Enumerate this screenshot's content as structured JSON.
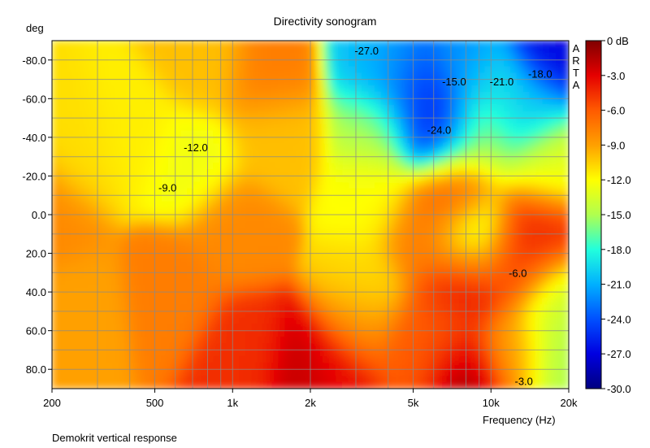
{
  "chart_data": {
    "type": "heatmap",
    "title": "Directivity sonogram",
    "ylabel": "deg",
    "xlabel": "Frequency (Hz)",
    "caption": "Demokrit vertical response",
    "watermark": "ARTA",
    "x_scale": "log",
    "xlim": [
      200,
      20000
    ],
    "ylim": [
      90,
      -90
    ],
    "x_ticks": [
      {
        "value": 200,
        "label": "200"
      },
      {
        "value": 500,
        "label": "500"
      },
      {
        "value": 1000,
        "label": "1k"
      },
      {
        "value": 2000,
        "label": "2k"
      },
      {
        "value": 5000,
        "label": "5k"
      },
      {
        "value": 10000,
        "label": "10k"
      },
      {
        "value": 20000,
        "label": "20k"
      }
    ],
    "y_ticks": [
      {
        "value": -80,
        "label": "-80.0"
      },
      {
        "value": -60,
        "label": "-60.0"
      },
      {
        "value": -40,
        "label": "-40.0"
      },
      {
        "value": -20,
        "label": "-20.0"
      },
      {
        "value": 0,
        "label": "0.0"
      },
      {
        "value": 20,
        "label": "20.0"
      },
      {
        "value": 40,
        "label": "40.0"
      },
      {
        "value": 60,
        "label": "60.0"
      },
      {
        "value": 80,
        "label": "80.0"
      }
    ],
    "colorbar": {
      "range": [
        -30,
        0
      ],
      "unit": "dB",
      "labels": [
        "0 dB",
        "-3.0",
        "-6.0",
        "-9.0",
        "-12.0",
        "-15.0",
        "-18.0",
        "-21.0",
        "-24.0",
        "-27.0",
        "-30.0"
      ]
    },
    "contour_labels": [
      {
        "text": "-27.0",
        "freq": 3300,
        "deg": -85
      },
      {
        "text": "-15.0",
        "freq": 7200,
        "deg": -69
      },
      {
        "text": "-21.0",
        "freq": 11000,
        "deg": -69
      },
      {
        "text": "-18.0",
        "freq": 15500,
        "deg": -73
      },
      {
        "text": "-24.0",
        "freq": 6300,
        "deg": -44
      },
      {
        "text": "-12.0",
        "freq": 720,
        "deg": -35
      },
      {
        "text": "-9.0",
        "freq": 560,
        "deg": -14
      },
      {
        "text": "-6.0",
        "freq": 12700,
        "deg": 30
      },
      {
        "text": "-3.0",
        "freq": 13400,
        "deg": 86
      }
    ],
    "grid": true,
    "levels": [
      {
        "freq": 200,
        "deg": 0,
        "db": -8
      },
      {
        "freq": 260,
        "deg": -30,
        "db": -11
      },
      {
        "freq": 420,
        "deg": -40,
        "db": -11.5
      },
      {
        "freq": 700,
        "deg": -25,
        "db": -12.5
      },
      {
        "freq": 800,
        "deg": -80,
        "db": -10
      },
      {
        "freq": 1400,
        "deg": -75,
        "db": -7.5
      },
      {
        "freq": 1500,
        "deg": -40,
        "db": -10
      },
      {
        "freq": 1000,
        "deg": 10,
        "db": -8
      },
      {
        "freq": 600,
        "deg": 40,
        "db": -7.5
      },
      {
        "freq": 250,
        "deg": 50,
        "db": -9
      },
      {
        "freq": 1100,
        "deg": 70,
        "db": -4.5
      },
      {
        "freq": 2000,
        "deg": 80,
        "db": -2
      },
      {
        "freq": 2600,
        "deg": 85,
        "db": -3
      },
      {
        "freq": 3000,
        "deg": 60,
        "db": -8
      },
      {
        "freq": 3200,
        "deg": 40,
        "db": -11
      },
      {
        "freq": 3500,
        "deg": -10,
        "db": -12
      },
      {
        "freq": 3600,
        "deg": -45,
        "db": -15
      },
      {
        "freq": 3600,
        "deg": -80,
        "db": -20
      },
      {
        "freq": 4200,
        "deg": -75,
        "db": -23
      },
      {
        "freq": 5200,
        "deg": -60,
        "db": -25
      },
      {
        "freq": 6400,
        "deg": -44,
        "db": -26
      },
      {
        "freq": 8000,
        "deg": -78,
        "db": -22
      },
      {
        "freq": 9000,
        "deg": -40,
        "db": -15
      },
      {
        "freq": 10500,
        "deg": -65,
        "db": -19
      },
      {
        "freq": 14000,
        "deg": -55,
        "db": -20
      },
      {
        "freq": 17000,
        "deg": -85,
        "db": -27
      },
      {
        "freq": 17000,
        "deg": -25,
        "db": -13
      },
      {
        "freq": 7300,
        "deg": -12,
        "db": -5
      },
      {
        "freq": 5500,
        "deg": 10,
        "db": -7.5
      },
      {
        "freq": 8500,
        "deg": 12,
        "db": -15
      },
      {
        "freq": 8000,
        "deg": 35,
        "db": -3
      },
      {
        "freq": 12500,
        "deg": 25,
        "db": -5
      },
      {
        "freq": 15500,
        "deg": 10,
        "db": -4
      },
      {
        "freq": 6500,
        "deg": 60,
        "db": -6
      },
      {
        "freq": 8000,
        "deg": 86,
        "db": -1
      },
      {
        "freq": 5000,
        "deg": 75,
        "db": -6
      },
      {
        "freq": 12000,
        "deg": 72,
        "db": -9
      },
      {
        "freq": 18000,
        "deg": 45,
        "db": -14
      },
      {
        "freq": 19000,
        "deg": 75,
        "db": -15
      }
    ]
  }
}
